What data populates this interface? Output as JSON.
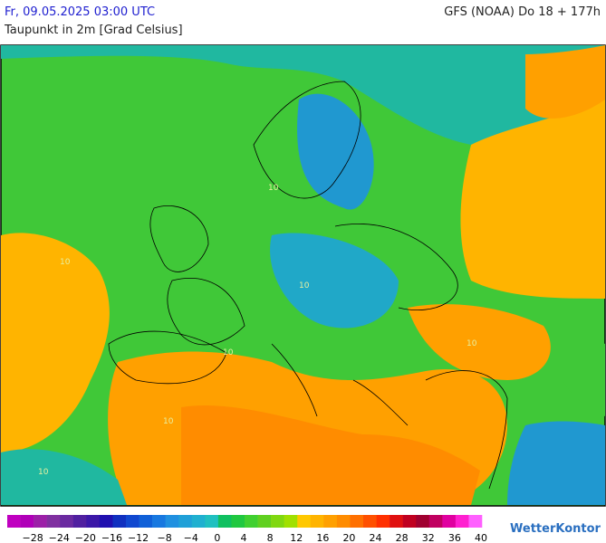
{
  "header": {
    "date": "Fr, 09.05.2025 03:00 UTC",
    "model": "GFS (NOAA) Do 18 + 177h",
    "subtitle": "Taupunkt in 2m [Grad Celsius]"
  },
  "map": {
    "contour_labels": [
      "10",
      "10",
      "10",
      "10",
      "10",
      "10",
      "10"
    ]
  },
  "legend": {
    "colors": [
      "#c000c0",
      "#b000b8",
      "#9c20a8",
      "#8030a0",
      "#6a2aa0",
      "#5020a0",
      "#3c18a8",
      "#2010b0",
      "#1030c0",
      "#1048d0",
      "#1060d8",
      "#1878e0",
      "#2090e0",
      "#20a0d8",
      "#20b0d0",
      "#20c0c0",
      "#10c060",
      "#20c840",
      "#40d030",
      "#60d020",
      "#80d810",
      "#a0e000",
      "#ffc800",
      "#ffb400",
      "#ffa000",
      "#ff8c00",
      "#ff7000",
      "#ff5000",
      "#ff3000",
      "#e01010",
      "#c00020",
      "#a00030",
      "#c00060",
      "#e000a0",
      "#ff20d0",
      "#ff60ff"
    ],
    "labels": [
      "−28",
      "−24",
      "−20",
      "−16",
      "−12",
      "−8",
      "−4",
      "0",
      "4",
      "8",
      "12",
      "16",
      "20",
      "24",
      "28",
      "32",
      "36",
      "40"
    ]
  },
  "logo": "WetterKontor"
}
